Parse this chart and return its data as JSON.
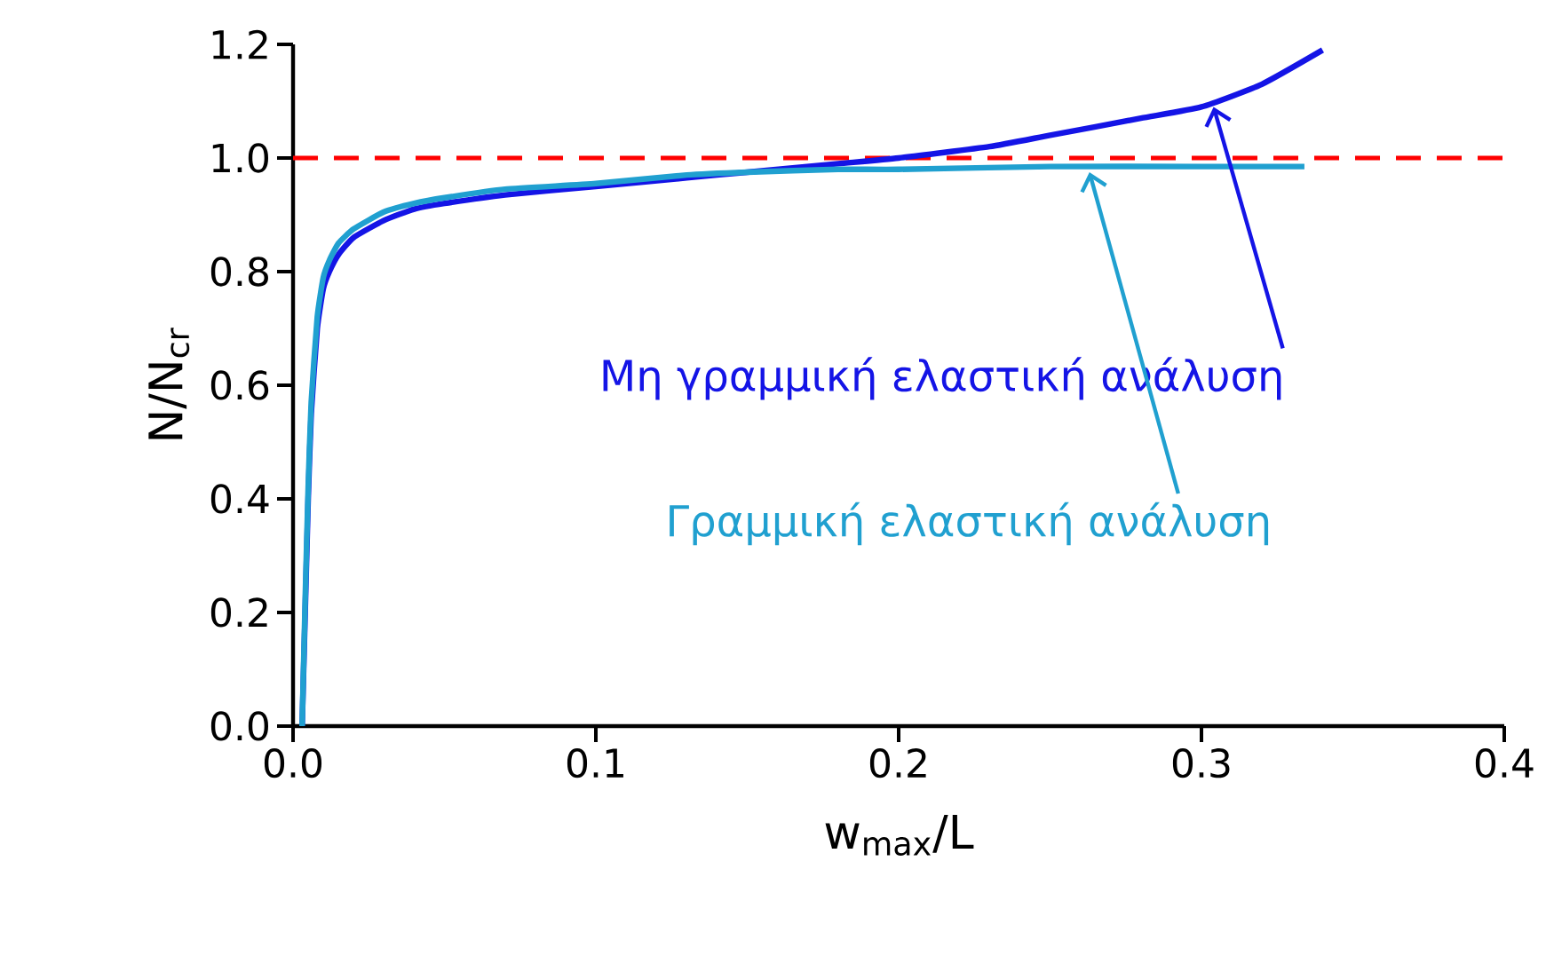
{
  "chart_data": {
    "type": "line",
    "xlabel": "w$_{max}$/L",
    "ylabel": "N/N$_{cr}$",
    "xlim": [
      0,
      0.4
    ],
    "ylim": [
      0,
      1.2
    ],
    "xticks": [
      {
        "value": 0,
        "label": "0.0"
      },
      0.1,
      0.2,
      0.3,
      0.4
    ],
    "yticks": [
      {
        "value": 0,
        "label": "0.0"
      },
      0.2,
      0.4,
      0.6,
      0.8,
      {
        "value": 1,
        "label": "1.0"
      },
      1.2
    ],
    "grid": false,
    "marker": "none",
    "line_style": "solid",
    "series": [
      {
        "color": "#1414e6",
        "x": [
          0.003,
          0.004,
          0.005,
          0.006,
          0.008,
          0.01,
          0.012,
          0.015,
          0.02,
          0.03,
          0.04,
          0.05,
          0.07,
          0.1,
          0.13,
          0.15,
          0.18,
          0.2,
          0.23,
          0.25,
          0.28,
          0.3,
          0.32,
          0.34
        ],
        "values": [
          0,
          0.2,
          0.4,
          0.55,
          0.7,
          0.77,
          0.8,
          0.83,
          0.86,
          0.89,
          0.91,
          0.92,
          0.935,
          0.95,
          0.965,
          0.975,
          0.99,
          1.0,
          1.02,
          1.04,
          1.07,
          1.09,
          1.13,
          1.19
        ]
      },
      {
        "color": "#20a0d0",
        "x": [
          0.003,
          0.004,
          0.005,
          0.006,
          0.008,
          0.01,
          0.012,
          0.015,
          0.02,
          0.03,
          0.04,
          0.05,
          0.07,
          0.1,
          0.13,
          0.15,
          0.18,
          0.2,
          0.25,
          0.3,
          0.334
        ],
        "values": [
          0,
          0.22,
          0.42,
          0.57,
          0.72,
          0.79,
          0.82,
          0.85,
          0.875,
          0.905,
          0.92,
          0.93,
          0.945,
          0.955,
          0.97,
          0.975,
          0.98,
          0.98,
          0.985,
          0.985,
          0.985
        ]
      }
    ],
    "ref_lines": [
      {
        "axis": "y",
        "value": 1,
        "color": "#ff0000",
        "line_style": "dashed"
      }
    ],
    "annotations": [
      {
        "text": "Μη γραμμική ελαστική ανάλυση",
        "x": 0.304,
        "y": 1.09
      },
      {
        "text": "Γραμμική ελαστική ανάλυση",
        "x": 0.263,
        "y": 0.975
      }
    ]
  }
}
